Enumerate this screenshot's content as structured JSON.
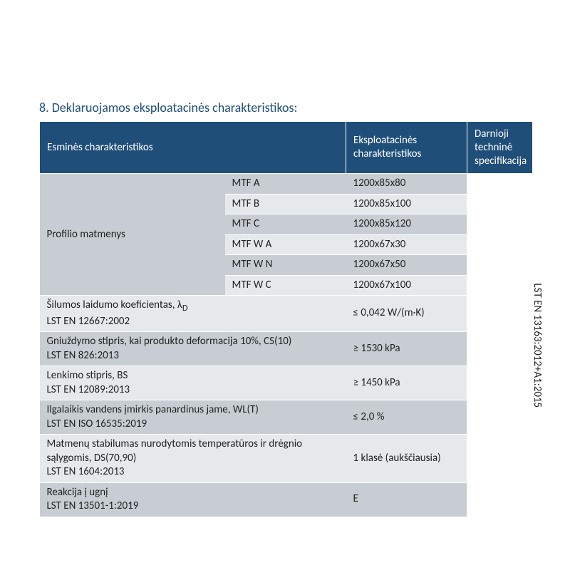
{
  "title": "8. Deklaruojamos eksploatacinės charakteristikos:",
  "headers": {
    "col1": "Esminės charakteristikos",
    "col2": "Eksploatacinės charakteristikos",
    "col3": "Darnioji techninė specifikacija"
  },
  "profile": {
    "label": "Profilio matmenys",
    "rows": [
      {
        "name": "MTF A",
        "value": "1200x85x80"
      },
      {
        "name": "MTF B",
        "value": "1200x85x100"
      },
      {
        "name": "MTF C",
        "value": "1200x85x120"
      },
      {
        "name": "MTF W A",
        "value": "1200x67x30"
      },
      {
        "name": "MTF W N",
        "value": "1200x67x50"
      },
      {
        "name": "MTF W C",
        "value": "1200x67x100"
      }
    ]
  },
  "props": [
    {
      "label": "Šilumos laidumo koeficientas, λ",
      "sub": "D",
      "std": "LST EN 12667:2002",
      "value": "≤ 0,042 W/(m·K)"
    },
    {
      "label": "Gniuždymo stipris, kai produkto deformacija 10%, CS(10)",
      "std": "LST EN 826:2013",
      "value": "≥ 1530 kPa"
    },
    {
      "label": "Lenkimo stipris, BS",
      "std": "LST EN 12089:2013",
      "value": "≥ 1450 kPa"
    },
    {
      "label": "Ilgalaikis vandens įmirkis panardinus jame, WL(T)",
      "std": "LST EN ISO 16535:2019",
      "value": "≤ 2,0 %"
    },
    {
      "label": "Matmenų stabilumas nurodytomis temperatūros ir drėgnio sąlygomis, DS(70,90)",
      "std": "LST EN 1604:2013",
      "value": "1 klasė (aukščiausia)"
    },
    {
      "label": "Reakcija į ugnį",
      "std": "LST EN 13501-1:2019",
      "value": "E"
    }
  ],
  "spec": "LST EN 13163:2012+A1:2015",
  "colors": {
    "header_bg": "#1f4e79",
    "header_text": "#ffffff",
    "row_a": "#c8cdd3",
    "row_b": "#e6e9ec",
    "title_color": "#1f4e79"
  }
}
